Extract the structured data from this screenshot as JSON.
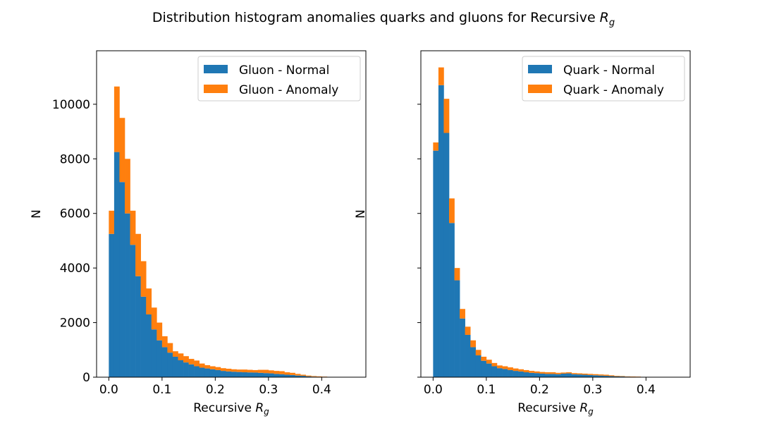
{
  "figure": {
    "title": "Distribution histogram anomalies quarks and gluons for Recursive ",
    "title_math": "R",
    "title_math_sub": "g"
  },
  "colors": {
    "normal": "#1f77b4",
    "anomaly": "#ff7f0e"
  },
  "chart_data": [
    {
      "type": "bar",
      "stacked": true,
      "xlabel": "Recursive ",
      "xlabel_math": "R",
      "xlabel_math_sub": "g",
      "ylabel": "N",
      "xlim": [
        -0.023,
        0.483
      ],
      "ylim": [
        0,
        11960
      ],
      "xticks": [
        "0.0",
        "0.1",
        "0.2",
        "0.3",
        "0.4"
      ],
      "yticks": [
        "0",
        "2000",
        "4000",
        "6000",
        "8000",
        "10000"
      ],
      "show_ytick_labels": true,
      "legend_position": "top-right",
      "bin_start": 0.0,
      "bin_width": 0.01,
      "series": [
        {
          "name": "Gluon - Normal",
          "values": [
            5250,
            8250,
            7150,
            6000,
            4850,
            3700,
            2950,
            2300,
            1750,
            1350,
            1100,
            900,
            750,
            620,
            540,
            470,
            400,
            350,
            320,
            290,
            260,
            230,
            210,
            200,
            190,
            180,
            175,
            170,
            160,
            150,
            140,
            120,
            110,
            90,
            80,
            60,
            50,
            30,
            20,
            15,
            10,
            5,
            0,
            0,
            0,
            0
          ]
        },
        {
          "name": "Gluon - Anomaly",
          "values": [
            850,
            2400,
            2350,
            2000,
            1250,
            1550,
            1300,
            950,
            800,
            650,
            400,
            350,
            200,
            250,
            230,
            200,
            210,
            150,
            120,
            110,
            110,
            100,
            100,
            90,
            90,
            100,
            95,
            90,
            110,
            120,
            110,
            110,
            110,
            90,
            80,
            60,
            40,
            30,
            20,
            15,
            10,
            5,
            0,
            0,
            0,
            0
          ]
        }
      ]
    },
    {
      "type": "bar",
      "stacked": true,
      "xlabel": "Recursive ",
      "xlabel_math": "R",
      "xlabel_math_sub": "g",
      "ylabel": "N",
      "xlim": [
        -0.023,
        0.483
      ],
      "ylim": [
        0,
        11960
      ],
      "xticks": [
        "0.0",
        "0.1",
        "0.2",
        "0.3",
        "0.4"
      ],
      "yticks": [
        "0",
        "2000",
        "4000",
        "6000",
        "8000",
        "10000"
      ],
      "show_ytick_labels": false,
      "legend_position": "top-right",
      "bin_start": 0.0,
      "bin_width": 0.01,
      "series": [
        {
          "name": "Quark - Normal",
          "values": [
            8300,
            10700,
            8950,
            5650,
            3550,
            2150,
            1550,
            1100,
            800,
            600,
            500,
            400,
            330,
            300,
            260,
            230,
            210,
            180,
            160,
            150,
            130,
            120,
            120,
            110,
            130,
            140,
            110,
            100,
            90,
            80,
            70,
            60,
            50,
            40,
            30,
            25,
            20,
            15,
            10,
            5,
            3,
            2,
            0,
            0,
            0,
            0
          ]
        },
        {
          "name": "Quark - Anomaly",
          "values": [
            300,
            650,
            1250,
            900,
            450,
            350,
            300,
            250,
            200,
            150,
            140,
            120,
            100,
            100,
            100,
            90,
            80,
            80,
            70,
            60,
            60,
            60,
            60,
            50,
            40,
            40,
            40,
            40,
            40,
            40,
            40,
            40,
            40,
            30,
            20,
            15,
            10,
            10,
            10,
            5,
            2,
            1,
            0,
            0,
            0,
            0
          ]
        }
      ]
    }
  ]
}
